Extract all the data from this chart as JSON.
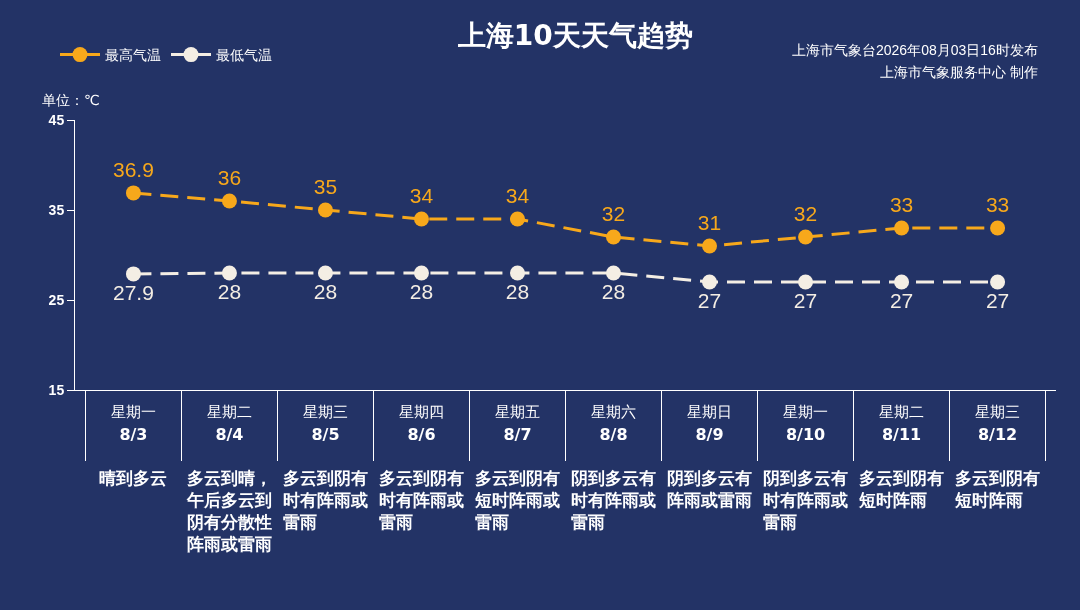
{
  "chart_data": {
    "type": "line",
    "title": "上海10天天气趋势",
    "ylabel": "单位：℃",
    "annotations": [
      "上海市气象台2026年08月03日16时发布",
      "上海市气象服务中心 制作"
    ],
    "categories": [
      "星期一\n8/3\n晴到多云",
      "星期二\n8/4\n多云到晴，午后多云到阴有分散性阵雨或雷雨",
      "星期三\n8/5\n多云到阴有时有阵雨或雷雨",
      "星期四\n8/6\n多云到阴有时有阵雨或雷雨",
      "星期五\n8/7\n多云到阴有短时阵雨或雷雨",
      "星期六\n8/8\n阴到多云有时有阵雨或雷雨",
      "星期日\n8/9\n阴到多云有阵雨或雷雨",
      "星期一\n8/10\n阴到多云有时有阵雨或雷雨",
      "星期二\n8/11\n多云到阴有短时阵雨",
      "星期三\n8/12\n多云到阴有短时阵雨"
    ],
    "series": [
      {
        "name": "最高气温",
        "color": "#f7a81b",
        "values": [
          36.9,
          36,
          35,
          34,
          34,
          32,
          31,
          32,
          33,
          33
        ]
      },
      {
        "name": "最低气温",
        "color": "#f4eee4",
        "values": [
          27.9,
          28,
          28,
          28,
          28,
          28,
          27,
          27,
          27,
          27
        ]
      }
    ],
    "ylim": [
      15,
      45
    ],
    "yticks": [
      15,
      25,
      35,
      45
    ],
    "data_labels": true,
    "legend": "top left",
    "marker": "circle",
    "line_style": "dashed"
  }
}
